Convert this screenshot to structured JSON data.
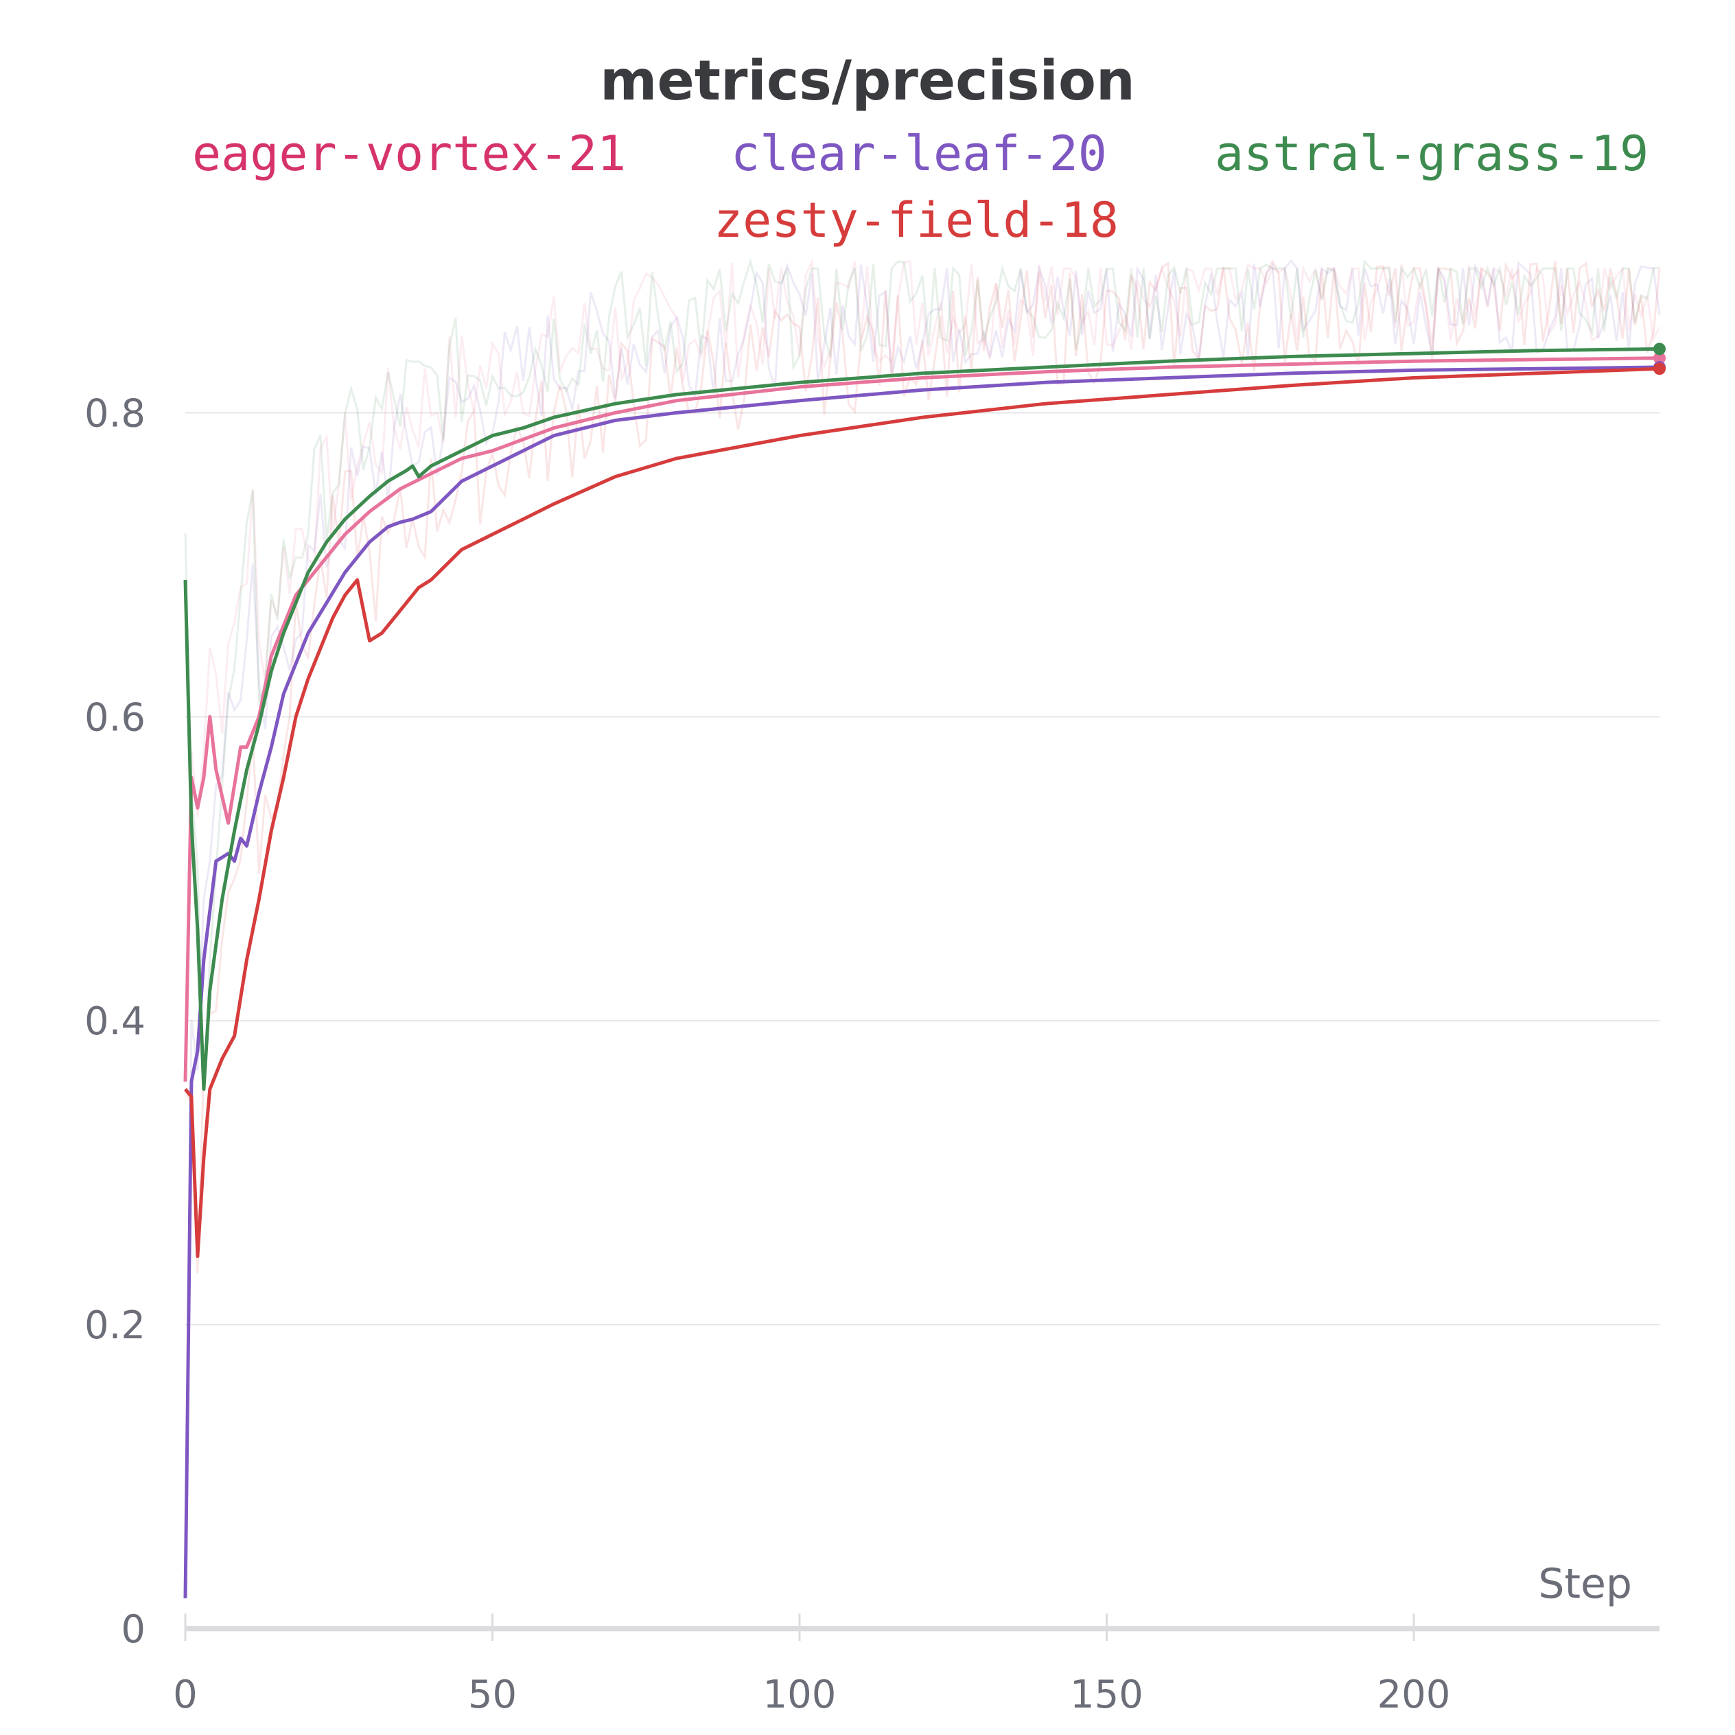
{
  "chart_data": {
    "type": "line",
    "title": "metrics/precision",
    "xlabel": "Step",
    "ylabel": "",
    "xlim": [
      0,
      240
    ],
    "ylim": [
      0,
      0.9
    ],
    "xticks": [
      "0",
      "50",
      "100",
      "150",
      "200"
    ],
    "xtick_values": [
      0,
      50,
      100,
      150,
      200
    ],
    "yticks": [
      "0",
      "0.2",
      "0.4",
      "0.6",
      "0.8"
    ],
    "ytick_values": [
      0,
      0.2,
      0.4,
      0.6,
      0.8
    ],
    "grid": true,
    "legend_position": "top",
    "series": [
      {
        "name": "eager-vortex-21",
        "color": "#d6336c",
        "line_color": "#e8739b",
        "x": [
          0,
          1,
          2,
          3,
          4,
          5,
          7,
          8,
          9,
          10,
          12,
          14,
          16,
          18,
          20,
          23,
          26,
          30,
          35,
          40,
          45,
          50,
          60,
          70,
          80,
          100,
          120,
          140,
          160,
          180,
          200,
          220,
          240
        ],
        "y": [
          0.36,
          0.56,
          0.54,
          0.56,
          0.6,
          0.565,
          0.53,
          0.555,
          0.58,
          0.58,
          0.6,
          0.64,
          0.66,
          0.68,
          0.69,
          0.705,
          0.72,
          0.735,
          0.75,
          0.76,
          0.77,
          0.775,
          0.79,
          0.8,
          0.808,
          0.817,
          0.823,
          0.827,
          0.83,
          0.832,
          0.834,
          0.835,
          0.836
        ]
      },
      {
        "name": "clear-leaf-20",
        "color": "#7e57c2",
        "line_color": "#7e57c2",
        "x": [
          0,
          1,
          2,
          3,
          5,
          7,
          8,
          9,
          10,
          12,
          14,
          16,
          18,
          20,
          23,
          26,
          30,
          33,
          35,
          37,
          40,
          45,
          50,
          55,
          60,
          70,
          80,
          100,
          120,
          140,
          160,
          180,
          200,
          220,
          240
        ],
        "y": [
          0.02,
          0.36,
          0.38,
          0.44,
          0.505,
          0.51,
          0.505,
          0.52,
          0.515,
          0.55,
          0.58,
          0.615,
          0.635,
          0.655,
          0.675,
          0.695,
          0.715,
          0.725,
          0.728,
          0.73,
          0.735,
          0.755,
          0.765,
          0.775,
          0.785,
          0.795,
          0.8,
          0.808,
          0.815,
          0.82,
          0.823,
          0.826,
          0.828,
          0.829,
          0.83
        ]
      },
      {
        "name": "astral-grass-19",
        "color": "#3d8b4f",
        "line_color": "#3d8b4f",
        "x": [
          0,
          1,
          2,
          3,
          4,
          6,
          8,
          10,
          12,
          14,
          16,
          18,
          20,
          23,
          26,
          30,
          33,
          36,
          37,
          38,
          40,
          45,
          50,
          55,
          60,
          70,
          80,
          100,
          120,
          140,
          160,
          180,
          200,
          220,
          240
        ],
        "y": [
          0.69,
          0.53,
          0.46,
          0.355,
          0.42,
          0.48,
          0.525,
          0.565,
          0.595,
          0.63,
          0.655,
          0.675,
          0.695,
          0.715,
          0.73,
          0.745,
          0.755,
          0.762,
          0.765,
          0.758,
          0.765,
          0.775,
          0.785,
          0.79,
          0.797,
          0.806,
          0.812,
          0.82,
          0.826,
          0.83,
          0.834,
          0.837,
          0.839,
          0.841,
          0.842
        ]
      },
      {
        "name": "zesty-field-18",
        "color": "#d63c3c",
        "line_color": "#d63c3c",
        "x": [
          0,
          1,
          2,
          3,
          4,
          6,
          8,
          10,
          12,
          14,
          16,
          18,
          20,
          22,
          24,
          26,
          28,
          30,
          32,
          35,
          38,
          40,
          45,
          50,
          55,
          60,
          70,
          80,
          100,
          120,
          140,
          160,
          180,
          200,
          220,
          240
        ],
        "y": [
          0.355,
          0.35,
          0.245,
          0.31,
          0.355,
          0.375,
          0.39,
          0.44,
          0.48,
          0.525,
          0.56,
          0.6,
          0.625,
          0.645,
          0.665,
          0.68,
          0.69,
          0.65,
          0.655,
          0.67,
          0.685,
          0.69,
          0.71,
          0.72,
          0.73,
          0.74,
          0.758,
          0.77,
          0.785,
          0.797,
          0.806,
          0.812,
          0.818,
          0.823,
          0.826,
          0.829
        ]
      }
    ]
  }
}
